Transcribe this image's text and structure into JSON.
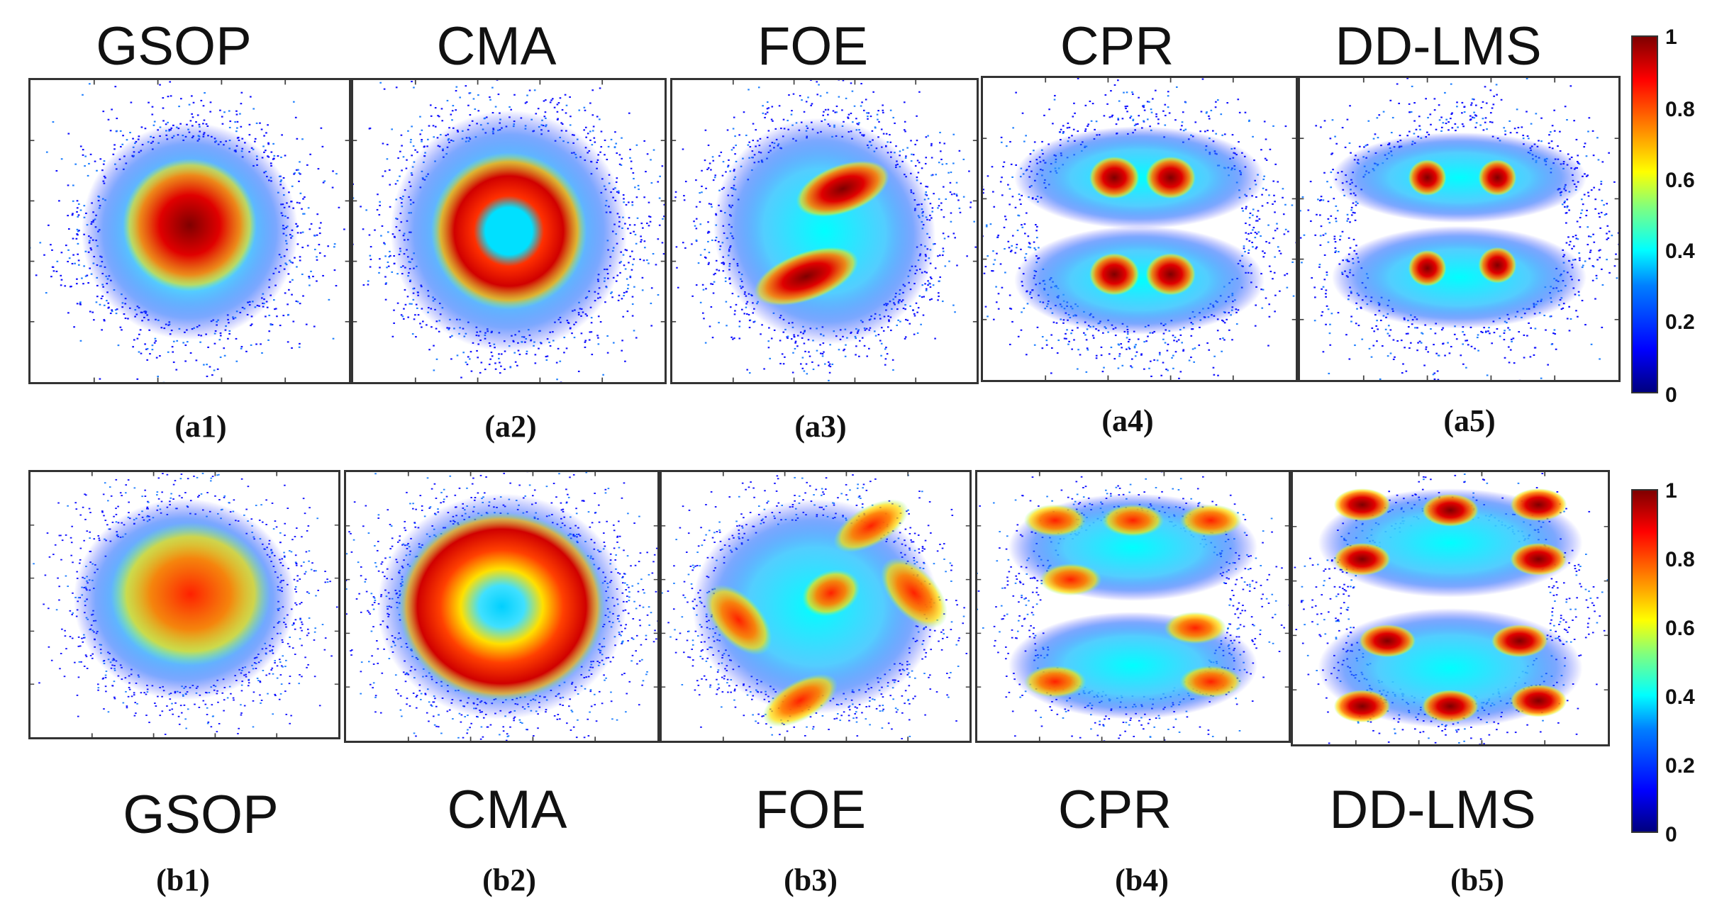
{
  "top_row": {
    "titles": [
      "GSOP",
      "CMA",
      "FOE",
      "CPR",
      "DD-LMS"
    ],
    "labels": [
      "(a1)",
      "(a2)",
      "(a3)",
      "(a4)",
      "(a5)"
    ]
  },
  "bottom_row": {
    "titles": [
      "GSOP",
      "CMA",
      "FOE",
      "CPR",
      "DD-LMS"
    ],
    "labels": [
      "(b1)",
      "(b2)",
      "(b3)",
      "(b4)",
      "(b5)"
    ]
  },
  "colorbar": {
    "ticks": [
      "1",
      "0.8",
      "0.6",
      "0.4",
      "0.2",
      "0"
    ],
    "range": [
      0,
      1
    ],
    "colormap": "jet"
  },
  "chart_data": {
    "type": "heatmap",
    "colormap": "jet",
    "zlim": [
      0,
      1
    ],
    "panels": [
      {
        "label": "(a1)",
        "title": "GSOP",
        "shape": "single disc"
      },
      {
        "label": "(a2)",
        "title": "CMA",
        "shape": "ring"
      },
      {
        "label": "(a3)",
        "title": "FOE",
        "shape": "two rotated bars"
      },
      {
        "label": "(a4)",
        "title": "CPR",
        "shape": "four clusters"
      },
      {
        "label": "(a5)",
        "title": "DD-LMS",
        "shape": "four clusters"
      },
      {
        "label": "(b1)",
        "title": "GSOP",
        "shape": "single disc"
      },
      {
        "label": "(b2)",
        "title": "CMA",
        "shape": "ring"
      },
      {
        "label": "(b3)",
        "title": "FOE",
        "shape": "rotated square of clusters"
      },
      {
        "label": "(b4)",
        "title": "CPR",
        "shape": "two rounded bands"
      },
      {
        "label": "(b5)",
        "title": "DD-LMS",
        "shape": "two rounded bands"
      }
    ]
  }
}
